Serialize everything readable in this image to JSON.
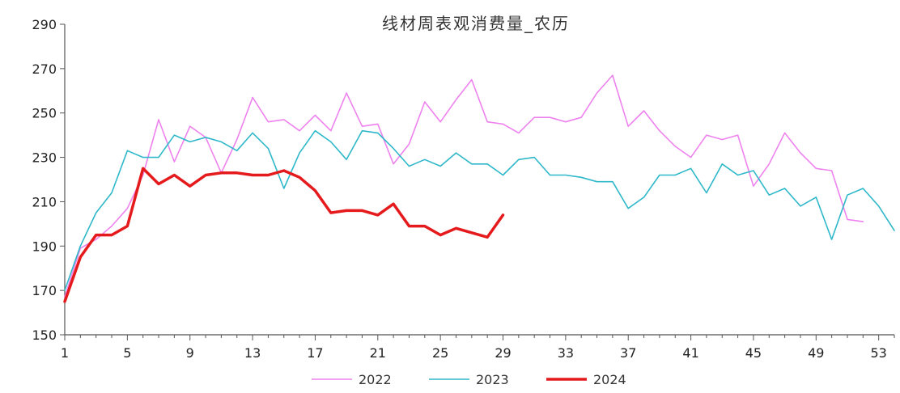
{
  "chart_data": {
    "type": "line",
    "title": "线材周表观消费量_农历",
    "xlabel": "",
    "ylabel": "",
    "xlim": [
      1,
      54
    ],
    "ylim": [
      150,
      290
    ],
    "y_ticks": [
      150,
      170,
      190,
      210,
      230,
      250,
      270,
      290
    ],
    "x_ticks": [
      1,
      5,
      9,
      13,
      17,
      21,
      25,
      29,
      33,
      37,
      41,
      45,
      49,
      53
    ],
    "grid": false,
    "legend_position": "bottom",
    "series": [
      {
        "name": "2022",
        "color": "#ee82ee",
        "width": 1.6,
        "values": [
          [
            1,
            167
          ],
          [
            2,
            189
          ],
          [
            3,
            193
          ],
          [
            4,
            199
          ],
          [
            5,
            207
          ],
          [
            6,
            222
          ],
          [
            7,
            247
          ],
          [
            8,
            228
          ],
          [
            9,
            244
          ],
          [
            10,
            239
          ],
          [
            11,
            223
          ],
          [
            12,
            238
          ],
          [
            13,
            257
          ],
          [
            14,
            246
          ],
          [
            15,
            247
          ],
          [
            16,
            242
          ],
          [
            17,
            249
          ],
          [
            18,
            242
          ],
          [
            19,
            259
          ],
          [
            20,
            244
          ],
          [
            21,
            245
          ],
          [
            22,
            227
          ],
          [
            23,
            236
          ],
          [
            24,
            255
          ],
          [
            25,
            246
          ],
          [
            26,
            256
          ],
          [
            27,
            265
          ],
          [
            28,
            246
          ],
          [
            29,
            245
          ],
          [
            30,
            241
          ],
          [
            31,
            248
          ],
          [
            32,
            248
          ],
          [
            33,
            246
          ],
          [
            34,
            248
          ],
          [
            35,
            259
          ],
          [
            36,
            267
          ],
          [
            37,
            244
          ],
          [
            38,
            251
          ],
          [
            39,
            242
          ],
          [
            40,
            235
          ],
          [
            41,
            230
          ],
          [
            42,
            240
          ],
          [
            43,
            238
          ],
          [
            44,
            240
          ],
          [
            45,
            217
          ],
          [
            46,
            227
          ],
          [
            47,
            241
          ],
          [
            48,
            232
          ],
          [
            49,
            225
          ],
          [
            50,
            224
          ],
          [
            51,
            202
          ],
          [
            52,
            201
          ]
        ]
      },
      {
        "name": "2023",
        "color": "#2eb8c9",
        "width": 1.6,
        "values": [
          [
            1,
            170
          ],
          [
            2,
            190
          ],
          [
            3,
            205
          ],
          [
            4,
            214
          ],
          [
            5,
            233
          ],
          [
            6,
            230
          ],
          [
            7,
            230
          ],
          [
            8,
            240
          ],
          [
            9,
            237
          ],
          [
            10,
            239
          ],
          [
            11,
            237
          ],
          [
            12,
            233
          ],
          [
            13,
            241
          ],
          [
            14,
            234
          ],
          [
            15,
            216
          ],
          [
            16,
            232
          ],
          [
            17,
            242
          ],
          [
            18,
            237
          ],
          [
            19,
            229
          ],
          [
            20,
            242
          ],
          [
            21,
            241
          ],
          [
            22,
            234
          ],
          [
            23,
            226
          ],
          [
            24,
            229
          ],
          [
            25,
            226
          ],
          [
            26,
            232
          ],
          [
            27,
            227
          ],
          [
            28,
            227
          ],
          [
            29,
            222
          ],
          [
            30,
            229
          ],
          [
            31,
            230
          ],
          [
            32,
            222
          ],
          [
            33,
            222
          ],
          [
            34,
            221
          ],
          [
            35,
            219
          ],
          [
            36,
            219
          ],
          [
            37,
            207
          ],
          [
            38,
            212
          ],
          [
            39,
            222
          ],
          [
            40,
            222
          ],
          [
            41,
            225
          ],
          [
            42,
            214
          ],
          [
            43,
            227
          ],
          [
            44,
            222
          ],
          [
            45,
            224
          ],
          [
            46,
            213
          ],
          [
            47,
            216
          ],
          [
            48,
            208
          ],
          [
            49,
            212
          ],
          [
            50,
            193
          ],
          [
            51,
            213
          ],
          [
            52,
            216
          ],
          [
            53,
            208
          ],
          [
            54,
            197
          ]
        ]
      },
      {
        "name": "2024",
        "color": "#e41a1c",
        "width": 3.5,
        "values": [
          [
            1,
            165
          ],
          [
            2,
            185
          ],
          [
            3,
            195
          ],
          [
            4,
            195
          ],
          [
            5,
            199
          ],
          [
            6,
            225
          ],
          [
            7,
            218
          ],
          [
            8,
            222
          ],
          [
            9,
            217
          ],
          [
            10,
            222
          ],
          [
            11,
            223
          ],
          [
            12,
            223
          ],
          [
            13,
            222
          ],
          [
            14,
            222
          ],
          [
            15,
            224
          ],
          [
            16,
            221
          ],
          [
            17,
            215
          ],
          [
            18,
            205
          ],
          [
            19,
            206
          ],
          [
            20,
            206
          ],
          [
            21,
            204
          ],
          [
            22,
            209
          ],
          [
            23,
            199
          ],
          [
            24,
            199
          ],
          [
            25,
            195
          ],
          [
            26,
            198
          ],
          [
            27,
            196
          ],
          [
            28,
            194
          ],
          [
            29,
            204
          ]
        ]
      }
    ]
  }
}
